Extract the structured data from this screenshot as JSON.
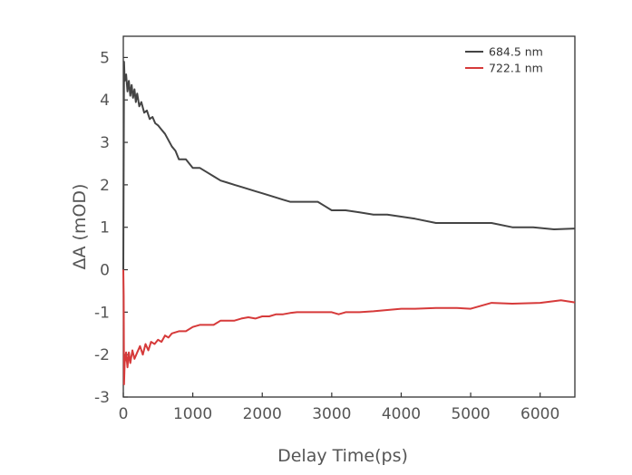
{
  "chart_data": {
    "type": "line",
    "title": "",
    "xlabel": "Delay Time(ps)",
    "ylabel": "ΔA (mOD)",
    "xlim": [
      0,
      6500
    ],
    "ylim": [
      -3,
      5.5
    ],
    "xticks": [
      0,
      1000,
      2000,
      3000,
      4000,
      5000,
      6000
    ],
    "xtick_labels": [
      "0",
      "1000",
      "2000",
      "3000",
      "4000",
      "5000",
      "6000"
    ],
    "yticks": [
      -3,
      -2,
      -1,
      0,
      1,
      2,
      3,
      4,
      5
    ],
    "ytick_labels": [
      "-3",
      "-2",
      "-1",
      "0",
      "1",
      "2",
      "3",
      "4",
      "5"
    ],
    "grid": false,
    "legend_position": "top-right",
    "series": [
      {
        "name": "684.5 nm",
        "color": "#444444",
        "x": [
          0,
          10,
          20,
          40,
          60,
          80,
          100,
          120,
          140,
          160,
          180,
          200,
          230,
          260,
          300,
          340,
          380,
          420,
          460,
          500,
          550,
          600,
          650,
          700,
          750,
          800,
          900,
          1000,
          1100,
          1200,
          1300,
          1400,
          1500,
          1600,
          1700,
          1800,
          1900,
          2000,
          2100,
          2200,
          2300,
          2400,
          2500,
          2600,
          2700,
          2800,
          2900,
          3000,
          3200,
          3400,
          3600,
          3800,
          4000,
          4200,
          4500,
          4800,
          5100,
          5300,
          5600,
          5900,
          6200,
          6500
        ],
        "y": [
          0,
          4.9,
          4.45,
          4.6,
          4.2,
          4.45,
          4.1,
          4.35,
          4.05,
          4.25,
          3.95,
          4.15,
          3.85,
          3.95,
          3.7,
          3.75,
          3.55,
          3.6,
          3.45,
          3.4,
          3.3,
          3.2,
          3.05,
          2.9,
          2.8,
          2.6,
          2.6,
          2.4,
          2.4,
          2.3,
          2.2,
          2.1,
          2.05,
          2.0,
          1.95,
          1.9,
          1.85,
          1.8,
          1.75,
          1.7,
          1.65,
          1.6,
          1.6,
          1.6,
          1.6,
          1.6,
          1.5,
          1.4,
          1.4,
          1.35,
          1.3,
          1.3,
          1.25,
          1.2,
          1.1,
          1.1,
          1.1,
          1.1,
          1.0,
          1.0,
          0.95,
          0.97
        ]
      },
      {
        "name": "722.1 nm",
        "color": "#d63a3a",
        "x": [
          0,
          5,
          10,
          20,
          40,
          60,
          80,
          100,
          130,
          160,
          200,
          240,
          280,
          320,
          360,
          400,
          450,
          500,
          550,
          600,
          650,
          700,
          800,
          900,
          1000,
          1100,
          1200,
          1300,
          1400,
          1500,
          1600,
          1700,
          1800,
          1900,
          2000,
          2100,
          2200,
          2300,
          2400,
          2500,
          2700,
          2900,
          3000,
          3100,
          3200,
          3400,
          3600,
          3800,
          4000,
          4200,
          4500,
          4800,
          5000,
          5300,
          5600,
          6000,
          6300,
          6500
        ],
        "y": [
          0,
          -0.6,
          -2.7,
          -2.2,
          -1.95,
          -2.3,
          -1.95,
          -2.2,
          -1.9,
          -2.1,
          -1.95,
          -1.8,
          -2.0,
          -1.75,
          -1.9,
          -1.7,
          -1.75,
          -1.65,
          -1.7,
          -1.55,
          -1.6,
          -1.5,
          -1.45,
          -1.45,
          -1.35,
          -1.3,
          -1.3,
          -1.3,
          -1.2,
          -1.2,
          -1.2,
          -1.15,
          -1.12,
          -1.15,
          -1.1,
          -1.1,
          -1.05,
          -1.05,
          -1.02,
          -1.0,
          -1.0,
          -1.0,
          -1.0,
          -1.05,
          -1.0,
          -1.0,
          -0.98,
          -0.95,
          -0.92,
          -0.92,
          -0.9,
          -0.9,
          -0.92,
          -0.78,
          -0.8,
          -0.78,
          -0.72,
          -0.77
        ]
      }
    ]
  }
}
